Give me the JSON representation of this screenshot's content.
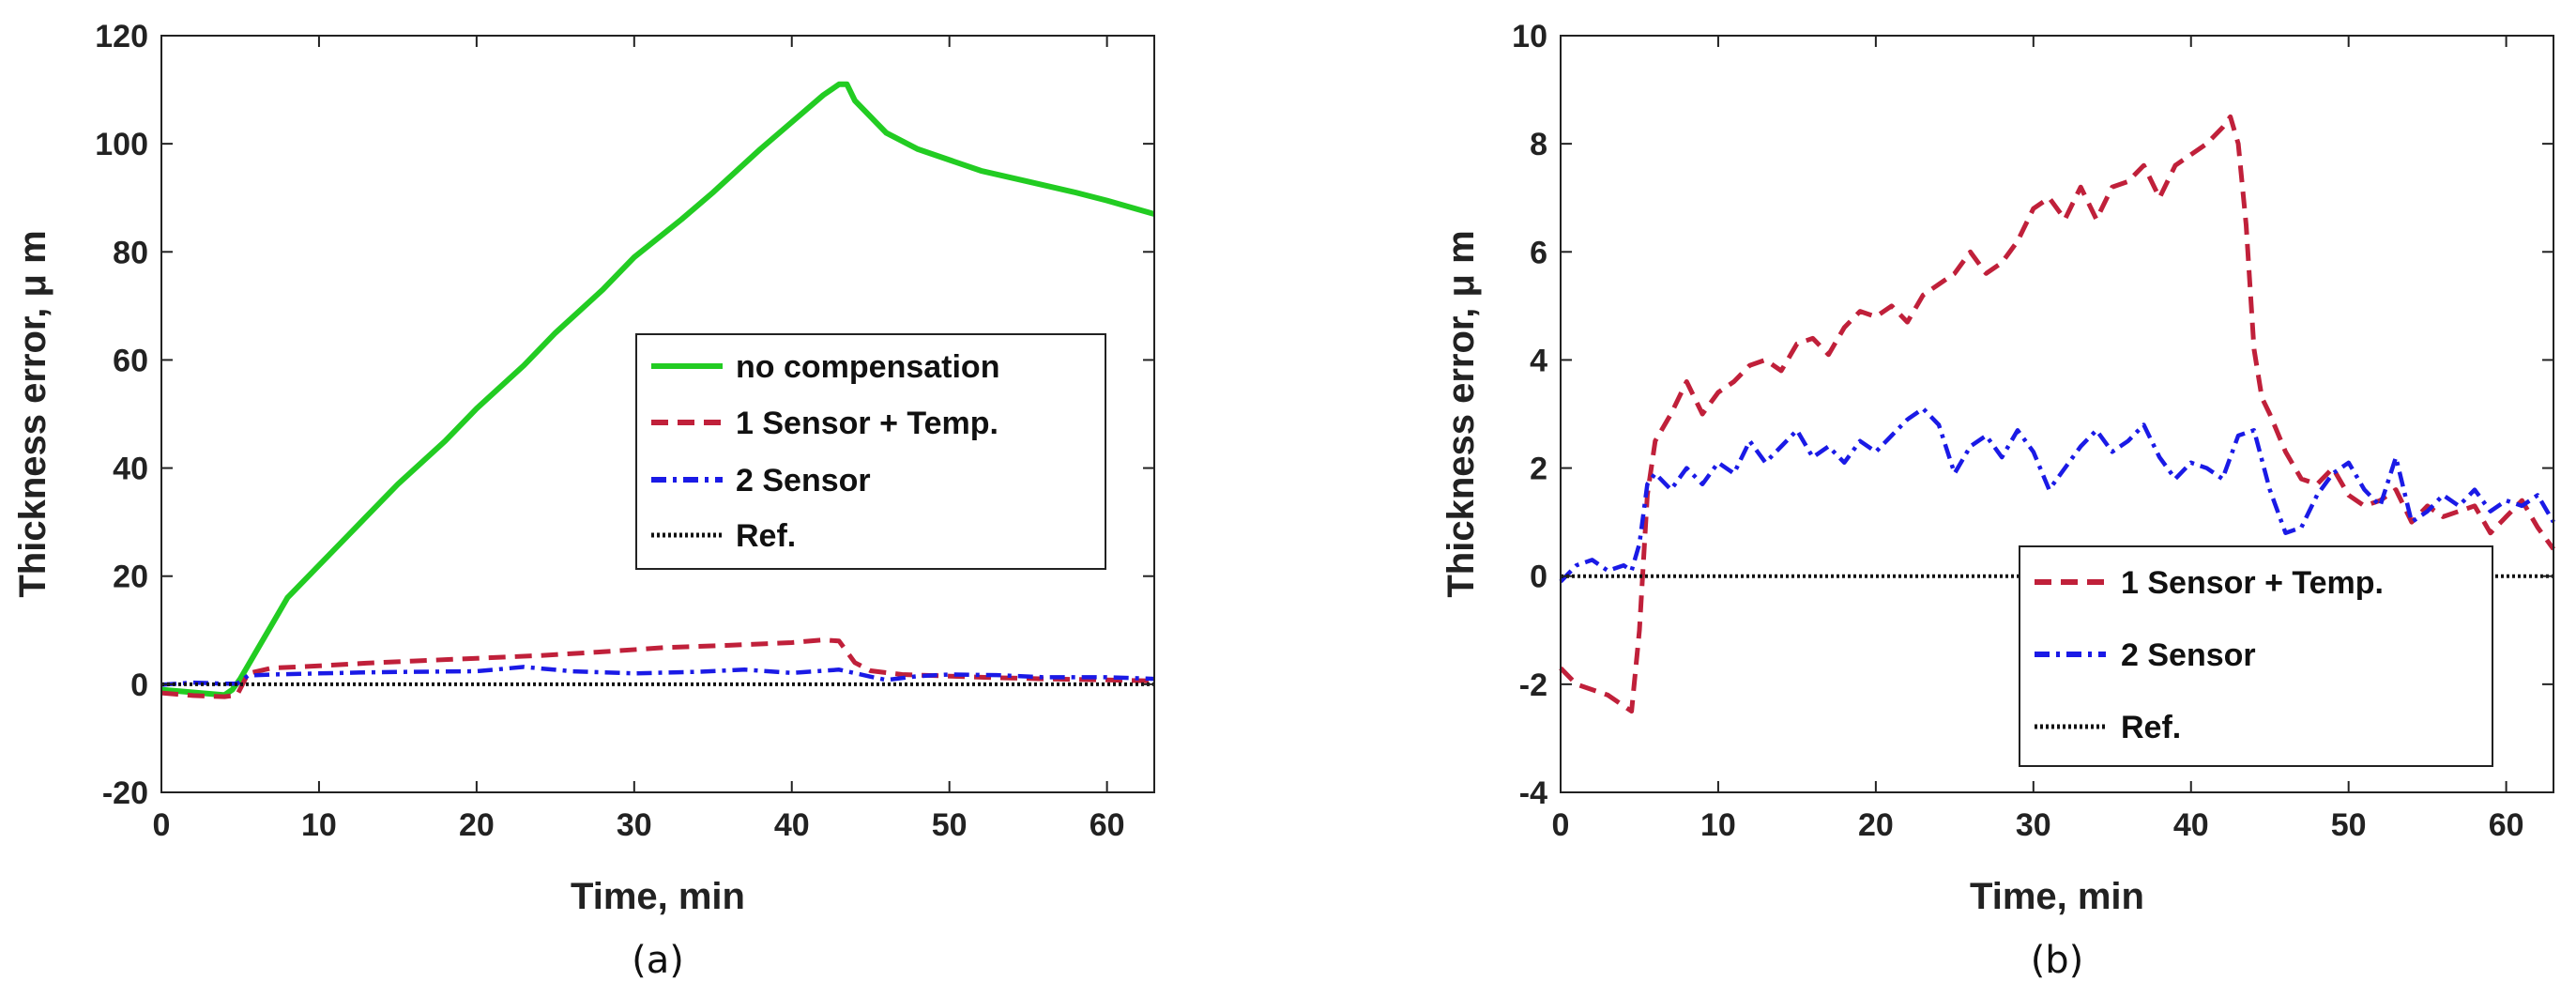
{
  "chart_data": [
    {
      "type": "line",
      "panel": "(a)",
      "caption": "(a)",
      "xlabel": "Time, min",
      "ylabel": "Thickness error, μ m",
      "xlim": [
        0,
        63
      ],
      "ylim": [
        -20,
        120
      ],
      "xticks": [
        0,
        10,
        20,
        30,
        40,
        50,
        60
      ],
      "yticks": [
        -20,
        0,
        20,
        40,
        60,
        80,
        100,
        120
      ],
      "xticklabels": [
        "0",
        "10",
        "20",
        "30",
        "40",
        "50",
        "60"
      ],
      "yticklabels": [
        "-20",
        "0",
        "20",
        "40",
        "60",
        "80",
        "100",
        "120"
      ],
      "legend_position": "center-right",
      "series": [
        {
          "name": "no compensation",
          "color": "#22cc22",
          "style": "solid",
          "x": [
            0,
            2,
            4,
            4.5,
            5,
            6,
            7,
            8,
            10,
            12,
            15,
            18,
            20,
            23,
            25,
            28,
            30,
            33,
            35,
            38,
            40,
            42,
            43,
            43.5,
            44,
            45,
            46,
            48,
            50,
            52,
            55,
            58,
            60,
            63
          ],
          "y": [
            -1,
            -1.5,
            -2,
            -1,
            1,
            6,
            11,
            16,
            22,
            28,
            37,
            45,
            51,
            59,
            65,
            73,
            79,
            86,
            91,
            99,
            104,
            109,
            111,
            111,
            108,
            105,
            102,
            99,
            97,
            95,
            93,
            91,
            89.5,
            87
          ]
        },
        {
          "name": "1 Sensor + Temp.",
          "color": "#c0203a",
          "style": "dashed",
          "x": [
            0,
            2,
            4,
            4.8,
            5.5,
            7,
            10,
            13,
            16,
            20,
            24,
            28,
            32,
            36,
            40,
            42,
            43,
            44,
            45,
            47,
            50,
            53,
            56,
            60,
            63
          ],
          "y": [
            -1.6,
            -2.1,
            -2.3,
            -2,
            2,
            3,
            3.4,
            3.9,
            4.3,
            4.8,
            5.3,
            6,
            6.8,
            7.2,
            7.7,
            8.2,
            8,
            4,
            2.5,
            1.8,
            1.5,
            1.2,
            1,
            0.8,
            0.6
          ]
        },
        {
          "name": "2 Sensor",
          "color": "#1a1ae6",
          "style": "dashdot",
          "x": [
            0,
            2,
            4,
            4.8,
            5.5,
            7,
            10,
            13,
            16,
            20,
            23,
            26,
            30,
            34,
            37,
            40,
            43,
            45,
            46,
            48,
            50,
            53,
            56,
            60,
            63
          ],
          "y": [
            -0.1,
            0.3,
            0.1,
            0.1,
            1.6,
            1.8,
            2,
            2.2,
            2.3,
            2.4,
            3.2,
            2.4,
            2,
            2.3,
            2.7,
            2.1,
            2.7,
            1.4,
            0.8,
            1.5,
            1.8,
            1.7,
            1.3,
            1.3,
            1
          ]
        },
        {
          "name": "Ref.",
          "color": "#111111",
          "style": "dotted",
          "x": [
            0,
            63
          ],
          "y": [
            0,
            0
          ]
        }
      ]
    },
    {
      "type": "line",
      "panel": "(b)",
      "caption": "(b)",
      "xlabel": "Time, min",
      "ylabel": "Thickness error, μ m",
      "xlim": [
        0,
        63
      ],
      "ylim": [
        -4,
        10
      ],
      "xticks": [
        0,
        10,
        20,
        30,
        40,
        50,
        60
      ],
      "yticks": [
        -4,
        -2,
        0,
        2,
        4,
        6,
        8,
        10
      ],
      "xticklabels": [
        "0",
        "10",
        "20",
        "30",
        "40",
        "50",
        "60"
      ],
      "yticklabels": [
        "-4",
        "-2",
        "0",
        "2",
        "4",
        "6",
        "8",
        "10"
      ],
      "legend_position": "bottom-right",
      "series": [
        {
          "name": "1 Sensor + Temp.",
          "color": "#c0203a",
          "style": "dashed",
          "x": [
            0,
            1,
            2,
            3,
            4,
            4.5,
            5,
            5.5,
            6,
            7,
            8,
            9,
            10,
            11,
            12,
            13,
            14,
            15,
            16,
            17,
            18,
            19,
            20,
            21,
            22,
            23,
            24,
            25,
            26,
            27,
            28,
            29,
            30,
            31,
            32,
            33,
            34,
            35,
            36,
            37,
            38,
            39,
            40,
            41,
            42,
            42.5,
            43,
            43.5,
            44,
            44.5,
            45,
            46,
            47,
            48,
            49,
            50,
            51,
            52,
            53,
            54,
            55,
            56,
            57,
            58,
            59,
            60,
            61,
            62,
            63
          ],
          "y": [
            -1.7,
            -2.0,
            -2.1,
            -2.2,
            -2.4,
            -2.5,
            -1.0,
            1.5,
            2.5,
            3.0,
            3.6,
            3.0,
            3.4,
            3.6,
            3.9,
            4.0,
            3.8,
            4.3,
            4.4,
            4.1,
            4.6,
            4.9,
            4.8,
            5.0,
            4.7,
            5.2,
            5.4,
            5.6,
            6.0,
            5.6,
            5.8,
            6.2,
            6.8,
            7.0,
            6.6,
            7.2,
            6.6,
            7.2,
            7.3,
            7.6,
            7.0,
            7.6,
            7.8,
            8.0,
            8.3,
            8.5,
            8.0,
            6.5,
            4.2,
            3.3,
            3.0,
            2.3,
            1.8,
            1.7,
            2.0,
            1.5,
            1.3,
            1.4,
            1.6,
            1.0,
            1.3,
            1.1,
            1.2,
            1.3,
            0.8,
            1.1,
            1.4,
            0.9,
            0.5
          ]
        },
        {
          "name": "2 Sensor",
          "color": "#1a1ae6",
          "style": "dashdot",
          "x": [
            0,
            1,
            2,
            3,
            4,
            4.5,
            5,
            5.5,
            6,
            7,
            8,
            9,
            10,
            11,
            12,
            13,
            14,
            15,
            16,
            17,
            18,
            19,
            20,
            21,
            22,
            23,
            24,
            25,
            26,
            27,
            28,
            29,
            30,
            31,
            32,
            33,
            34,
            35,
            36,
            37,
            38,
            39,
            40,
            41,
            42,
            43,
            44,
            45,
            46,
            47,
            48,
            49,
            50,
            51,
            52,
            53,
            54,
            55,
            56,
            57,
            58,
            59,
            60,
            61,
            62,
            63
          ],
          "y": [
            -0.1,
            0.2,
            0.3,
            0.1,
            0.2,
            0.1,
            0.6,
            1.7,
            1.9,
            1.6,
            2.0,
            1.7,
            2.1,
            1.9,
            2.5,
            2.1,
            2.4,
            2.7,
            2.2,
            2.4,
            2.1,
            2.5,
            2.3,
            2.6,
            2.9,
            3.1,
            2.8,
            1.9,
            2.4,
            2.6,
            2.2,
            2.7,
            2.3,
            1.6,
            2.0,
            2.4,
            2.7,
            2.3,
            2.5,
            2.8,
            2.2,
            1.8,
            2.1,
            2.0,
            1.8,
            2.6,
            2.7,
            1.6,
            0.8,
            0.9,
            1.5,
            1.9,
            2.1,
            1.6,
            1.3,
            2.2,
            1.0,
            1.2,
            1.5,
            1.3,
            1.6,
            1.2,
            1.4,
            1.3,
            1.5,
            1.0
          ]
        },
        {
          "name": "Ref.",
          "color": "#111111",
          "style": "dotted",
          "x": [
            0,
            63
          ],
          "y": [
            0,
            0
          ]
        }
      ]
    }
  ]
}
